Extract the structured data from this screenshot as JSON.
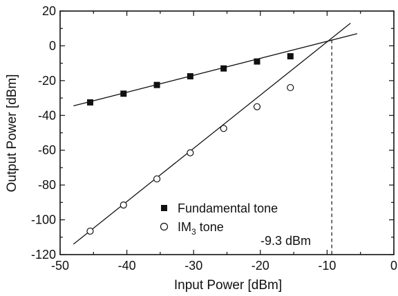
{
  "chart_data": {
    "type": "scatter",
    "xlabel": "Input Power [dBm]",
    "ylabel": "Output Power [dBm]",
    "xlim": [
      -50,
      0
    ],
    "ylim": [
      -120,
      20
    ],
    "x_ticks": [
      -50,
      -40,
      -30,
      -20,
      -10,
      0
    ],
    "y_ticks": [
      -120,
      -100,
      -80,
      -60,
      -40,
      -20,
      0,
      20
    ],
    "x_tick_labels": [
      "-50",
      "-40",
      "-30",
      "-20",
      "-10",
      "0"
    ],
    "y_tick_labels": [
      "-120",
      "-100",
      "-80",
      "-60",
      "-40",
      "-20",
      "0",
      "20"
    ],
    "grid": false,
    "legend_position": "bottom-center",
    "series": [
      {
        "name": "Fundamental tone",
        "marker": "filled-square",
        "x": [
          -45.5,
          -40.5,
          -35.5,
          -30.5,
          -25.5,
          -20.5,
          -15.5
        ],
        "y": [
          -32.5,
          -27.5,
          -22.5,
          -17.5,
          -13,
          -9,
          -6
        ]
      },
      {
        "name": "IM",
        "name_subscript": "3",
        "name_suffix": " tone",
        "marker": "open-circle",
        "x": [
          -45.5,
          -40.5,
          -35.5,
          -30.5,
          -25.5,
          -20.5,
          -15.5
        ],
        "y": [
          -106.5,
          -91.5,
          -76.5,
          -61.5,
          -47.5,
          -35,
          -24
        ]
      }
    ],
    "fit_lines": [
      {
        "of": "Fundamental tone",
        "x": [
          -48,
          -5.5
        ],
        "y": [
          -34.5,
          7
        ]
      },
      {
        "of": "IM3 tone",
        "x": [
          -48,
          -6.5
        ],
        "y": [
          -114,
          13
        ]
      }
    ],
    "annotation": {
      "text": "-9.3 dBm",
      "x": -9.3,
      "y_top": 3.5,
      "y_bottom": -120
    }
  }
}
